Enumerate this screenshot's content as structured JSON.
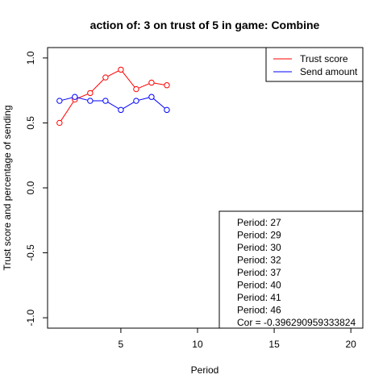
{
  "chart_data": {
    "type": "line",
    "title": "action of:  3  on trust of  5 in game:  Combine",
    "xlabel": "Period",
    "ylabel": "Trust score and percentage of sending",
    "xlim": [
      0.22,
      20.78
    ],
    "ylim": [
      -1.08,
      1.08
    ],
    "xticks": [
      5,
      10,
      15,
      20
    ],
    "yticks": [
      -1.0,
      -0.5,
      0.0,
      0.5,
      1.0
    ],
    "ytick_labels": [
      "-1.0",
      "-0.5",
      "0.0",
      "0.5",
      "1.0"
    ],
    "grid": false,
    "legend_position": "top-right",
    "x": [
      1,
      2,
      3,
      4,
      5,
      6,
      7,
      8
    ],
    "series": [
      {
        "name": "Trust score",
        "color": "#ff0000",
        "values": [
          0.5,
          0.68,
          0.73,
          0.85,
          0.91,
          0.76,
          0.81,
          0.79
        ]
      },
      {
        "name": "Send amount",
        "color": "#0000ff",
        "values": [
          0.67,
          0.7,
          0.67,
          0.67,
          0.6,
          0.67,
          0.7,
          0.6
        ]
      }
    ],
    "annotation": {
      "lines": [
        "Period:  27",
        "Period:  29",
        "Period:  30",
        "Period:  32",
        "Period:  37",
        "Period:  40",
        "Period:  41",
        "Period:  46",
        "Cor =  -0.396290959333824"
      ]
    }
  }
}
